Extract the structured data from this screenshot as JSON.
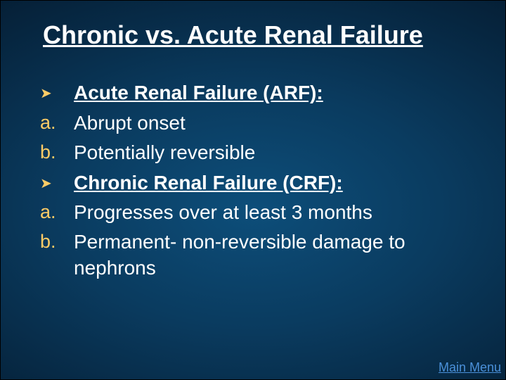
{
  "colors": {
    "background_center": "#0d4e7a",
    "background_edge": "#020d18",
    "title_color": "#ffffff",
    "body_color": "#ffffff",
    "marker_color": "#ffcc66",
    "link_color": "#4a90d9"
  },
  "typography": {
    "title_fontsize": 36,
    "body_fontsize": 28,
    "marker_fontsize": 27,
    "link_fontsize": 18,
    "font_family": "Arial"
  },
  "title": "Chronic vs. Acute Renal Failure",
  "items": [
    {
      "marker": "➤",
      "marker_type": "arrow",
      "text": "Acute Renal Failure (ARF):",
      "heading": true
    },
    {
      "marker": "a.",
      "marker_type": "letter",
      "text": "Abrupt onset",
      "heading": false
    },
    {
      "marker": "b.",
      "marker_type": "letter",
      "text": "Potentially reversible",
      "heading": false
    },
    {
      "marker": "➤",
      "marker_type": "arrow",
      "text": "Chronic Renal Failure (CRF):",
      "heading": true
    },
    {
      "marker": "a.",
      "marker_type": "letter",
      "text": "Progresses over at least 3 months",
      "heading": false
    },
    {
      "marker": "b.",
      "marker_type": "letter",
      "text": "Permanent- non-reversible damage to nephrons",
      "heading": false
    }
  ],
  "link": {
    "label": "Main Menu"
  }
}
